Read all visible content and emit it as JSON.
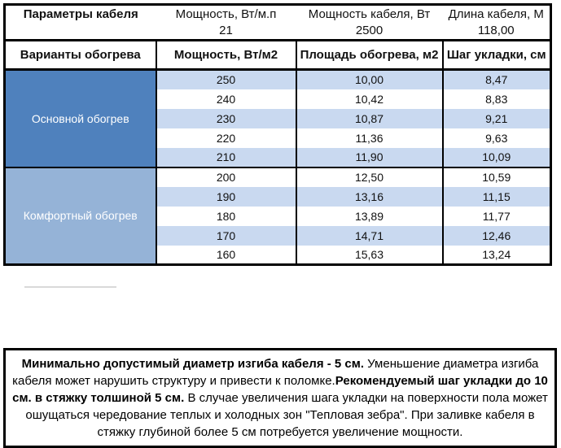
{
  "colors": {
    "border": "#000000",
    "section_primary": "#4f81bd",
    "section_comfort": "#95b3d7",
    "row_band": "#c9d9f0"
  },
  "top": {
    "col1_header": "Параметры кабеля",
    "cols": [
      {
        "label": "Мощность, Вт/м.п",
        "value": "21"
      },
      {
        "label": "Мощность кабеля, Вт",
        "value": "2500"
      },
      {
        "label": "Длина кабеля, М",
        "value": "118,00"
      }
    ]
  },
  "table_header": [
    "Варианты обогрева",
    "Мощность, Вт/м2",
    "Площадь обогрева, м2",
    "Шаг укладки, см"
  ],
  "sections": [
    {
      "label": "Основной обогрев",
      "rows": [
        [
          "250",
          "10,00",
          "8,47"
        ],
        [
          "240",
          "10,42",
          "8,83"
        ],
        [
          "230",
          "10,87",
          "9,21"
        ],
        [
          "220",
          "11,36",
          "9,63"
        ],
        [
          "210",
          "11,90",
          "10,09"
        ]
      ]
    },
    {
      "label": "Комфортный обогрев",
      "rows": [
        [
          "200",
          "12,50",
          "10,59"
        ],
        [
          "190",
          "13,16",
          "11,15"
        ],
        [
          "180",
          "13,89",
          "11,77"
        ],
        [
          "170",
          "14,71",
          "12,46"
        ],
        [
          "160",
          "15,63",
          "13,24"
        ]
      ]
    }
  ],
  "note": {
    "segments": [
      {
        "text": "Минимально допустимый диаметр изгиба кабеля - 5 см.",
        "bold": true
      },
      {
        "text": "  Уменьшение диаметра изгиба кабеля может нарушить структуру и привести к поломке.",
        "bold": false
      },
      {
        "text": "Рекомендуемый шаг укладки до 10 см. в стяжку толшиной 5 см.",
        "bold": true
      },
      {
        "text": " В  случае увеличения шага укладки на поверхности пола может ошущаться чередование теплых и холодных зон \"Тепловая зебра\". При заливке кабеля в стяжку глубиной более 5 см потребуется увеличение мощности.",
        "bold": false
      }
    ]
  }
}
